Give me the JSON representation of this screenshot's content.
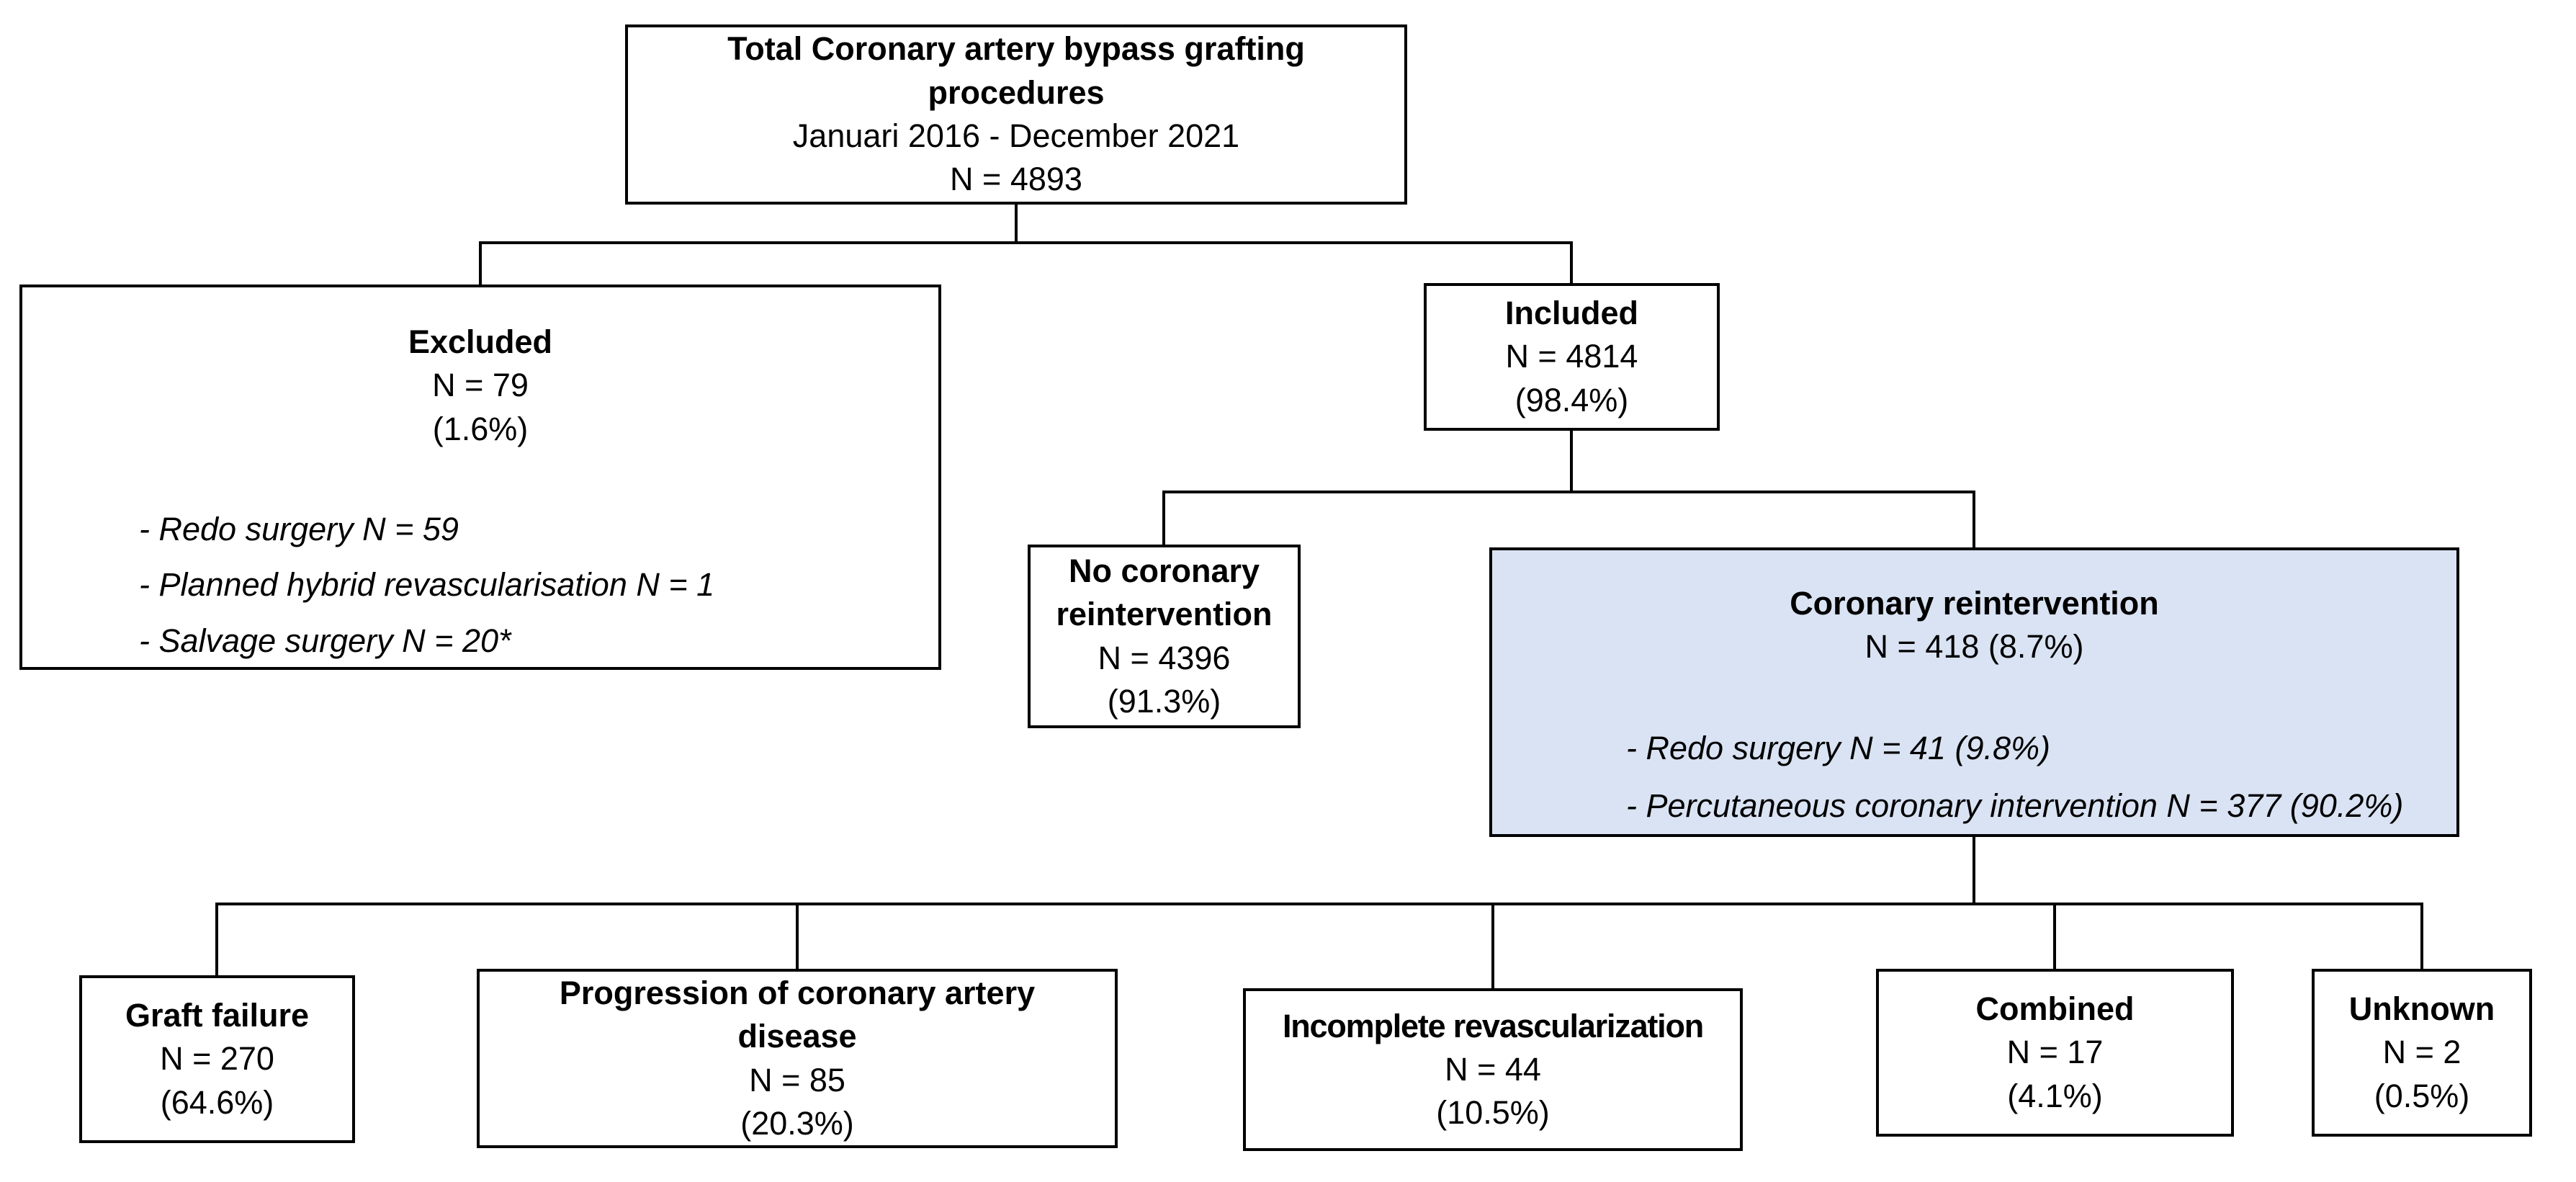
{
  "colors": {
    "background": "#ffffff",
    "border": "#000000",
    "highlight_fill": "#dae3f3",
    "text": "#000000"
  },
  "nodes": {
    "total": {
      "title": "Total Coronary artery bypass grafting procedures",
      "period": "Januari 2016 - December 2021",
      "n": "N = 4893"
    },
    "excluded": {
      "title": "Excluded",
      "n": "N = 79",
      "pct": "(1.6%)",
      "bullets": [
        "- Redo surgery N = 59",
        "- Planned hybrid revascularisation N = 1",
        "- Salvage surgery N = 20*"
      ]
    },
    "included": {
      "title": "Included",
      "n": "N = 4814",
      "pct": "(98.4%)"
    },
    "no_reintervention": {
      "title": "No coronary reintervention",
      "n": "N = 4396",
      "pct": "(91.3%)"
    },
    "reintervention": {
      "title": "Coronary reintervention",
      "n": "N = 418 (8.7%)",
      "bullets": [
        "- Redo surgery N = 41 (9.8%)",
        "- Percutaneous coronary intervention N = 377 (90.2%)"
      ]
    },
    "graft_failure": {
      "title": "Graft failure",
      "n": "N = 270",
      "pct": "(64.6%)"
    },
    "progression": {
      "title": "Progression of coronary artery disease",
      "n": "N = 85",
      "pct": "(20.3%)"
    },
    "incomplete": {
      "title": "Incomplete revascularization",
      "n": "N = 44",
      "pct": "(10.5%)"
    },
    "combined": {
      "title": "Combined",
      "n": "N = 17",
      "pct": "(4.1%)"
    },
    "unknown": {
      "title": "Unknown",
      "n": "N = 2",
      "pct": "(0.5%)"
    }
  }
}
